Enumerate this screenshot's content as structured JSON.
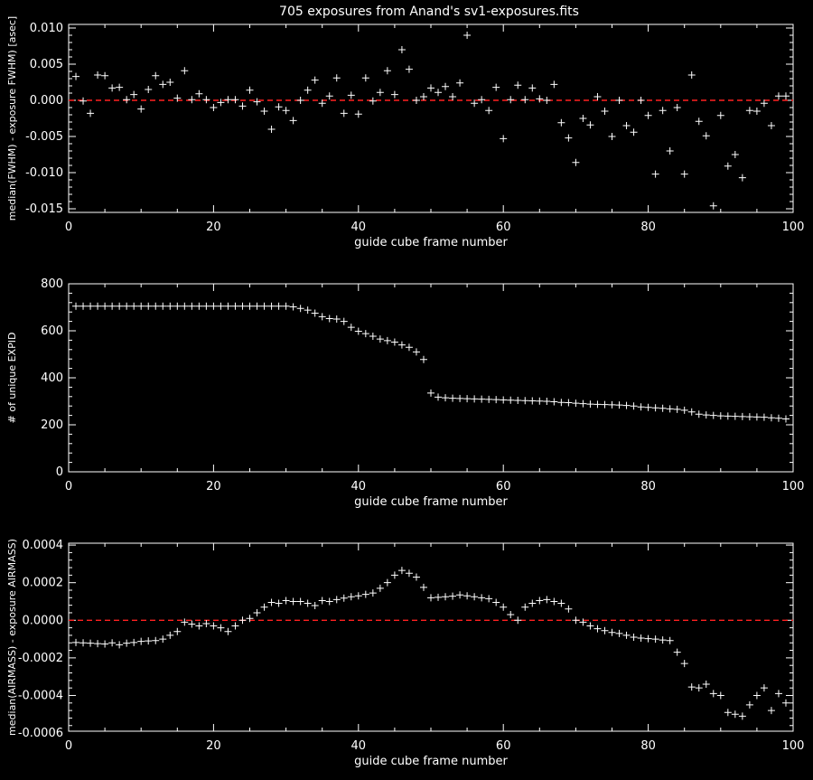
{
  "title": "705 exposures from Anand's sv1-exposures.fits",
  "colors": {
    "background": "#000000",
    "foreground": "#ffffff",
    "reference_line": "#ff2020"
  },
  "chart_data": [
    {
      "type": "scatter",
      "marker": "plus",
      "xlabel": "guide cube frame number",
      "ylabel": "median(FWHM) - exposure FWHM) [asec]",
      "xlim": [
        0,
        100
      ],
      "ylim": [
        -0.0155,
        0.0105
      ],
      "xticks": [
        0,
        20,
        40,
        60,
        80,
        100
      ],
      "xtick_labels": [
        "0",
        "20",
        "40",
        "60",
        "80",
        "100"
      ],
      "yticks": [
        -0.015,
        -0.01,
        -0.005,
        0.0,
        0.005,
        0.01
      ],
      "ytick_labels": [
        "-0.015",
        "-0.010",
        "-0.005",
        "0.000",
        "0.005",
        "0.010"
      ],
      "reference_line": 0,
      "x": [
        1,
        2,
        3,
        4,
        5,
        6,
        7,
        8,
        9,
        10,
        11,
        12,
        13,
        14,
        15,
        16,
        17,
        18,
        19,
        20,
        21,
        22,
        23,
        24,
        25,
        26,
        27,
        28,
        29,
        30,
        31,
        32,
        33,
        34,
        35,
        36,
        37,
        38,
        39,
        40,
        41,
        42,
        43,
        44,
        45,
        46,
        47,
        48,
        49,
        50,
        51,
        52,
        53,
        54,
        55,
        56,
        57,
        58,
        59,
        60,
        61,
        62,
        63,
        64,
        65,
        66,
        67,
        68,
        69,
        70,
        71,
        72,
        73,
        74,
        75,
        76,
        77,
        78,
        79,
        80,
        81,
        82,
        83,
        84,
        85,
        86,
        87,
        88,
        89,
        90,
        91,
        92,
        93,
        94,
        95,
        96,
        97,
        98,
        99
      ],
      "y": [
        0.0033,
        -0.0001,
        -0.0018,
        0.0035,
        0.0034,
        0.0017,
        0.0018,
        0.0001,
        0.0008,
        -0.0012,
        0.0015,
        0.0034,
        0.0022,
        0.0025,
        0.0003,
        0.0041,
        0.0001,
        0.0009,
        0.0001,
        -0.001,
        -0.0003,
        0.0001,
        0.0001,
        -0.0008,
        0.0014,
        -0.0002,
        -0.0015,
        -0.004,
        -0.0009,
        -0.0014,
        -0.0028,
        0.0,
        0.0014,
        0.0028,
        -0.0004,
        0.0006,
        0.0031,
        -0.0018,
        0.0007,
        -0.0019,
        0.0031,
        -0.0001,
        0.0011,
        0.0041,
        0.0008,
        0.007,
        0.0043,
        0.0,
        0.0005,
        0.0017,
        0.0011,
        0.0019,
        0.0005,
        0.0024,
        0.009,
        -0.0004,
        0.0001,
        -0.0014,
        0.0018,
        -0.0053,
        0.0001,
        0.0021,
        0.0001,
        0.0017,
        0.0002,
        0.0,
        0.0022,
        -0.0031,
        -0.0052,
        -0.0086,
        -0.0025,
        -0.0034,
        0.0005,
        -0.0015,
        -0.005,
        0.0,
        -0.0035,
        -0.0044,
        0.0,
        -0.0021,
        -0.0102,
        -0.0014,
        -0.007,
        -0.001,
        -0.0102,
        0.0035,
        -0.0029,
        -0.0049,
        -0.0146,
        -0.0021,
        -0.0091,
        -0.0075,
        -0.0107,
        -0.0014,
        -0.0015,
        -0.0004,
        -0.0035,
        0.0006,
        0.0006
      ]
    },
    {
      "type": "scatter",
      "marker": "plus",
      "xlabel": "guide cube frame number",
      "ylabel": "# of unique EXPID",
      "xlim": [
        0,
        100
      ],
      "ylim": [
        0,
        800
      ],
      "xticks": [
        0,
        20,
        40,
        60,
        80,
        100
      ],
      "xtick_labels": [
        "0",
        "20",
        "40",
        "60",
        "80",
        "100"
      ],
      "yticks": [
        0,
        200,
        400,
        600,
        800
      ],
      "ytick_labels": [
        "0",
        "200",
        "400",
        "600",
        "800"
      ],
      "x": [
        1,
        2,
        3,
        4,
        5,
        6,
        7,
        8,
        9,
        10,
        11,
        12,
        13,
        14,
        15,
        16,
        17,
        18,
        19,
        20,
        21,
        22,
        23,
        24,
        25,
        26,
        27,
        28,
        29,
        30,
        31,
        32,
        33,
        34,
        35,
        36,
        37,
        38,
        39,
        40,
        41,
        42,
        43,
        44,
        45,
        46,
        47,
        48,
        49,
        50,
        51,
        52,
        53,
        54,
        55,
        56,
        57,
        58,
        59,
        60,
        61,
        62,
        63,
        64,
        65,
        66,
        67,
        68,
        69,
        70,
        71,
        72,
        73,
        74,
        75,
        76,
        77,
        78,
        79,
        80,
        81,
        82,
        83,
        84,
        85,
        86,
        87,
        88,
        89,
        90,
        91,
        92,
        93,
        94,
        95,
        96,
        97,
        98,
        99
      ],
      "y": [
        705,
        705,
        705,
        705,
        705,
        705,
        705,
        705,
        705,
        705,
        705,
        705,
        705,
        705,
        705,
        705,
        705,
        705,
        705,
        705,
        705,
        705,
        705,
        705,
        705,
        705,
        705,
        705,
        705,
        705,
        702,
        695,
        688,
        675,
        660,
        652,
        650,
        640,
        615,
        598,
        588,
        577,
        565,
        558,
        552,
        540,
        530,
        510,
        478,
        335,
        318,
        315,
        313,
        312,
        311,
        310,
        309,
        308,
        307,
        306,
        305,
        304,
        303,
        302,
        301,
        300,
        298,
        295,
        294,
        292,
        290,
        288,
        287,
        286,
        285,
        284,
        282,
        280,
        276,
        274,
        272,
        270,
        268,
        266,
        262,
        255,
        245,
        242,
        240,
        238,
        237,
        236,
        235,
        234,
        233,
        232,
        230,
        228,
        225
      ]
    },
    {
      "type": "scatter",
      "marker": "plus",
      "xlabel": "guide cube frame number",
      "ylabel": "median(AIRMASS) - exposure AIRMASS)",
      "xlim": [
        0,
        100
      ],
      "ylim": [
        -0.00059,
        0.00041
      ],
      "xticks": [
        0,
        20,
        40,
        60,
        80,
        100
      ],
      "xtick_labels": [
        "0",
        "20",
        "40",
        "60",
        "80",
        "100"
      ],
      "yticks": [
        -0.0006,
        -0.0004,
        -0.0002,
        0.0,
        0.0002,
        0.0004
      ],
      "ytick_labels": [
        "-0.0006",
        "-0.0004",
        "-0.0002",
        "0.0000",
        "0.0002",
        "0.0004"
      ],
      "reference_line": 0,
      "x": [
        1,
        2,
        3,
        4,
        5,
        6,
        7,
        8,
        9,
        10,
        11,
        12,
        13,
        14,
        15,
        16,
        17,
        18,
        19,
        20,
        21,
        22,
        23,
        24,
        25,
        26,
        27,
        28,
        29,
        30,
        31,
        32,
        33,
        34,
        35,
        36,
        37,
        38,
        39,
        40,
        41,
        42,
        43,
        44,
        45,
        46,
        47,
        48,
        49,
        50,
        51,
        52,
        53,
        54,
        55,
        56,
        57,
        58,
        59,
        60,
        61,
        62,
        63,
        64,
        65,
        66,
        67,
        68,
        69,
        70,
        71,
        72,
        73,
        74,
        75,
        76,
        77,
        78,
        79,
        80,
        81,
        82,
        83,
        84,
        85,
        86,
        87,
        88,
        89,
        90,
        91,
        92,
        93,
        94,
        95,
        96,
        97,
        98,
        99
      ],
      "y": [
        -0.000118,
        -0.00012,
        -0.000122,
        -0.000124,
        -0.000126,
        -0.00012,
        -0.00013,
        -0.000122,
        -0.000118,
        -0.000112,
        -0.00011,
        -0.000108,
        -0.0001,
        -8e-05,
        -6e-05,
        -1e-05,
        -2e-05,
        -3e-05,
        -1.8e-05,
        -3e-05,
        -4e-05,
        -6e-05,
        -3e-05,
        0.0,
        1e-05,
        4e-05,
        7e-05,
        9.5e-05,
        9e-05,
        0.000105,
        0.0001,
        0.0001,
        9e-05,
        7.8e-05,
        0.000105,
        0.0001,
        0.00011,
        0.000118,
        0.000125,
        0.00013,
        0.000138,
        0.000145,
        0.00017,
        0.0002,
        0.00024,
        0.000265,
        0.00025,
        0.00023,
        0.000175,
        0.00012,
        0.000122,
        0.000125,
        0.000128,
        0.000135,
        0.00013,
        0.000125,
        0.00012,
        0.000115,
        9.5e-05,
        7e-05,
        3e-05,
        0.0,
        7e-05,
        9e-05,
        0.000105,
        0.00011,
        0.0001,
        9e-05,
        6e-05,
        0.0,
        -1e-05,
        -3e-05,
        -4.5e-05,
        -5.5e-05,
        -6.5e-05,
        -7e-05,
        -8e-05,
        -9e-05,
        -9.5e-05,
        -9.8e-05,
        -0.0001,
        -0.000105,
        -0.000108,
        -0.00017,
        -0.00023,
        -0.000355,
        -0.00036,
        -0.00034,
        -0.00039,
        -0.0004,
        -0.00049,
        -0.0005,
        -0.00051,
        -0.00045,
        -0.0004,
        -0.00036,
        -0.00048,
        -0.00039,
        -0.00044
      ]
    }
  ]
}
